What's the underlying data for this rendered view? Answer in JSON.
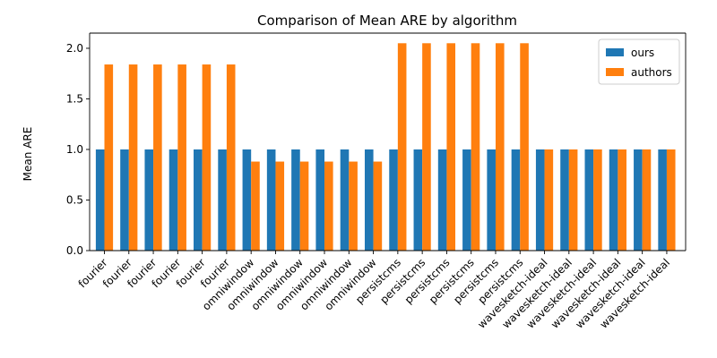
{
  "chart_data": {
    "type": "bar",
    "title": "Comparison of Mean ARE by algorithm",
    "xlabel": "",
    "ylabel": "Mean ARE",
    "ylim": [
      0,
      2.15
    ],
    "yticks": [
      0.0,
      0.5,
      1.0,
      1.5,
      2.0
    ],
    "ytick_labels": [
      "0.0",
      "0.5",
      "1.0",
      "1.5",
      "2.0"
    ],
    "legend_position": "top-right",
    "grid": false,
    "categories": [
      "fourier",
      "fourier",
      "fourier",
      "fourier",
      "fourier",
      "fourier",
      "omniwindow",
      "omniwindow",
      "omniwindow",
      "omniwindow",
      "omniwindow",
      "omniwindow",
      "persistcms",
      "persistcms",
      "persistcms",
      "persistcms",
      "persistcms",
      "persistcms",
      "wavesketch-ideal",
      "wavesketch-ideal",
      "wavesketch-ideal",
      "wavesketch-ideal",
      "wavesketch-ideal",
      "wavesketch-ideal"
    ],
    "series": [
      {
        "name": "ours",
        "color": "#1f77b4",
        "values": [
          1,
          1,
          1,
          1,
          1,
          1,
          1,
          1,
          1,
          1,
          1,
          1,
          1,
          1,
          1,
          1,
          1,
          1,
          1,
          1,
          1,
          1,
          1,
          1
        ]
      },
      {
        "name": "authors",
        "color": "#ff7f0e",
        "values": [
          1.84,
          1.84,
          1.84,
          1.84,
          1.84,
          1.84,
          0.88,
          0.88,
          0.88,
          0.88,
          0.88,
          0.88,
          2.05,
          2.05,
          2.05,
          2.05,
          2.05,
          2.05,
          1,
          1,
          1,
          1,
          1,
          1
        ]
      }
    ]
  }
}
